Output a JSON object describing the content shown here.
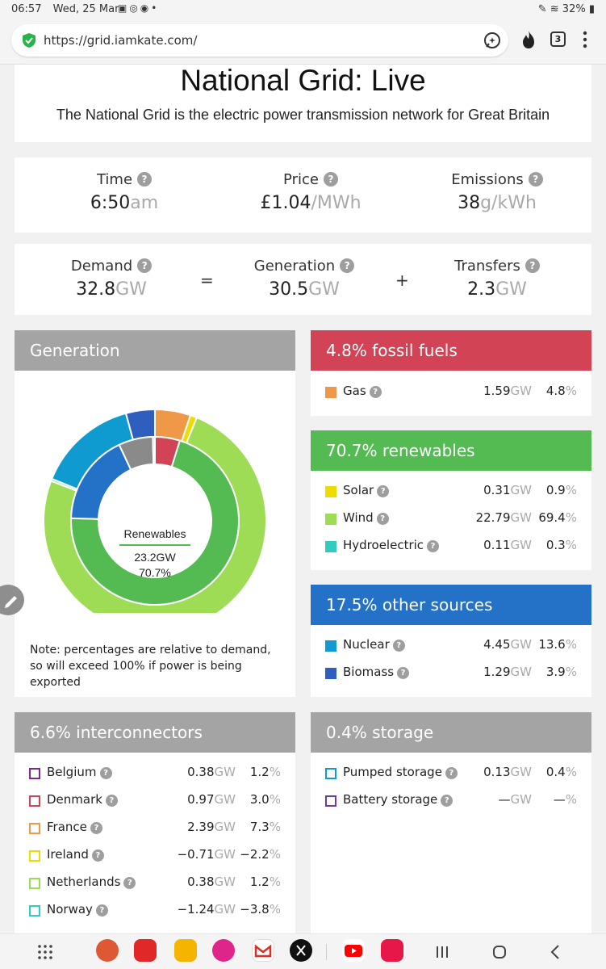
{
  "status_bar": {
    "time": "06:57",
    "date": "Wed, 25 Mar",
    "battery": "32%"
  },
  "browser": {
    "url": "https://grid.iamkate.com/",
    "tab_count": "3"
  },
  "header": {
    "title": "National Grid: Live",
    "subtitle": "The National Grid is the electric power transmission network for Great Britain"
  },
  "stats": {
    "time_label": "Time",
    "time_value": "6:50",
    "time_unit": "am",
    "price_label": "Price",
    "price_value": "£1.04",
    "price_unit": "/MWh",
    "emissions_label": "Emissions",
    "emissions_value": "38",
    "emissions_unit": "g/kWh"
  },
  "balance": {
    "demand_label": "Demand",
    "demand_value": "32.8",
    "demand_unit": "GW",
    "equals": "=",
    "generation_label": "Generation",
    "generation_value": "30.5",
    "generation_unit": "GW",
    "plus": "+",
    "transfers_label": "Transfers",
    "transfers_value": "2.3",
    "transfers_unit": "GW"
  },
  "generation_panel": {
    "title": "Generation",
    "center_label": "Renewables",
    "center_value": "23.2GW",
    "center_pct": "70.7%",
    "note": "Note: percentages are relative to demand, so will exceed 100% if power is being exported"
  },
  "colors": {
    "fossil": "#d14355",
    "renewables": "#54bb53",
    "other": "#2472c8",
    "grey": "#a4a4a4",
    "gas": "#ef9847",
    "solar": "#eddc00",
    "wind": "#9fdc56",
    "hydro": "#30cdbe",
    "nuclear": "#0f9bcf",
    "biomass": "#2e5fbf"
  },
  "chart_data": {
    "type": "pie",
    "title": "Generation",
    "inner_ring": [
      {
        "name": "Fossil fuels",
        "value": 4.8
      },
      {
        "name": "Renewables",
        "value": 70.7
      },
      {
        "name": "Other sources",
        "value": 17.5
      },
      {
        "name": "Interconnectors",
        "value": 6.6
      },
      {
        "name": "Storage",
        "value": 0.4
      }
    ],
    "outer_ring": [
      {
        "name": "Gas",
        "value": 4.8
      },
      {
        "name": "Solar",
        "value": 0.9
      },
      {
        "name": "Wind",
        "value": 69.4
      },
      {
        "name": "Hydroelectric",
        "value": 0.3
      },
      {
        "name": "Nuclear",
        "value": 13.6
      },
      {
        "name": "Biomass",
        "value": 3.9
      }
    ]
  },
  "fossil": {
    "title": "4.8% fossil fuels",
    "rows": [
      {
        "name": "Gas",
        "gw": "1.59",
        "unit": "GW",
        "pct": "4.8",
        "pct_unit": "%"
      }
    ]
  },
  "renewables": {
    "title": "70.7% renewables",
    "rows": [
      {
        "name": "Solar",
        "gw": "0.31",
        "unit": "GW",
        "pct": "0.9",
        "pct_unit": "%"
      },
      {
        "name": "Wind",
        "gw": "22.79",
        "unit": "GW",
        "pct": "69.4",
        "pct_unit": "%"
      },
      {
        "name": "Hydroelectric",
        "gw": "0.11",
        "unit": "GW",
        "pct": "0.3",
        "pct_unit": "%"
      }
    ]
  },
  "other": {
    "title": "17.5% other sources",
    "rows": [
      {
        "name": "Nuclear",
        "gw": "4.45",
        "unit": "GW",
        "pct": "13.6",
        "pct_unit": "%"
      },
      {
        "name": "Biomass",
        "gw": "1.29",
        "unit": "GW",
        "pct": "3.9",
        "pct_unit": "%"
      }
    ]
  },
  "interconnectors": {
    "title": "6.6% interconnectors",
    "rows": [
      {
        "name": "Belgium",
        "gw": "0.38",
        "unit": "GW",
        "pct": "1.2",
        "pct_unit": "%",
        "color": "#7b2a8f"
      },
      {
        "name": "Denmark",
        "gw": "0.97",
        "unit": "GW",
        "pct": "3.0",
        "pct_unit": "%",
        "color": "#d14355"
      },
      {
        "name": "France",
        "gw": "2.39",
        "unit": "GW",
        "pct": "7.3",
        "pct_unit": "%",
        "color": "#ef9847"
      },
      {
        "name": "Ireland",
        "gw": "−0.71",
        "unit": "GW",
        "pct": "−2.2",
        "pct_unit": "%",
        "color": "#eddc00"
      },
      {
        "name": "Netherlands",
        "gw": "0.38",
        "unit": "GW",
        "pct": "1.2",
        "pct_unit": "%",
        "color": "#9fdc56"
      },
      {
        "name": "Norway",
        "gw": "−1.24",
        "unit": "GW",
        "pct": "−3.8",
        "pct_unit": "%",
        "color": "#30cdbe"
      }
    ]
  },
  "storage": {
    "title": "0.4% storage",
    "rows": [
      {
        "name": "Pumped storage",
        "gw": "0.13",
        "unit": "GW",
        "pct": "0.4",
        "pct_unit": "%",
        "color": "#0f9bcf"
      },
      {
        "name": "Battery storage",
        "gw": "—",
        "unit": "GW",
        "pct": "—",
        "pct_unit": "%",
        "color": "#6a3d9a"
      }
    ]
  },
  "nav_apps": [
    "duckduckgo-app",
    "flipboard-app",
    "files-app",
    "gallery-app",
    "gmail-app",
    "x-app",
    "youtube-app",
    "free-app"
  ]
}
